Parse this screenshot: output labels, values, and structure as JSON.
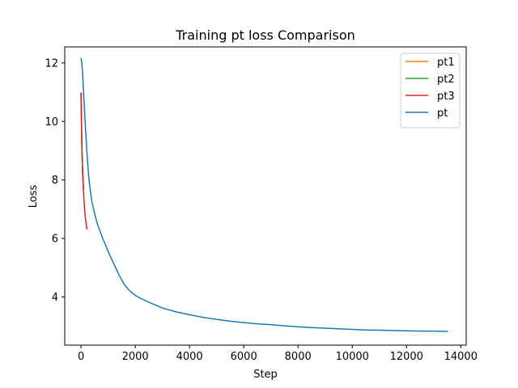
{
  "chart_data": {
    "type": "line",
    "title": "Training pt loss Comparison",
    "xlabel": "Step",
    "ylabel": "Loss",
    "xlim": [
      -600,
      14200
    ],
    "ylim": [
      2.35,
      12.55
    ],
    "xticks": [
      0,
      2000,
      4000,
      6000,
      8000,
      10000,
      12000,
      14000
    ],
    "yticks": [
      4,
      6,
      8,
      10,
      12
    ],
    "grid": false,
    "legend": "top-right",
    "series": [
      {
        "name": "pt1",
        "color": "#ff7f0e",
        "x": [
          0,
          10,
          20,
          30,
          40,
          50,
          60,
          70,
          80,
          90,
          100
        ],
        "y": [
          10.9,
          10.3,
          9.7,
          9.2,
          8.8,
          8.5,
          8.2,
          8.0,
          7.85,
          7.75,
          7.7
        ]
      },
      {
        "name": "pt2",
        "color": "#2ca02c",
        "x": [
          0,
          10,
          20,
          30,
          40,
          50,
          60,
          70,
          80,
          90,
          100
        ],
        "y": [
          10.95,
          10.35,
          9.75,
          9.25,
          8.85,
          8.5,
          8.25,
          8.05,
          7.9,
          7.8,
          7.72
        ]
      },
      {
        "name": "pt3",
        "color": "#d62728",
        "x": [
          0,
          10,
          20,
          30,
          40,
          50,
          60,
          70,
          80,
          100,
          120,
          140,
          160,
          180,
          200,
          220
        ],
        "y": [
          10.97,
          10.4,
          9.8,
          9.3,
          8.9,
          8.55,
          8.3,
          8.05,
          7.8,
          7.45,
          7.15,
          6.9,
          6.7,
          6.55,
          6.42,
          6.32
        ]
      },
      {
        "name": "pt",
        "color": "#1f77b4",
        "x": [
          0,
          30,
          60,
          100,
          150,
          200,
          250,
          300,
          400,
          500,
          600,
          800,
          1000,
          1200,
          1400,
          1600,
          1800,
          2000,
          2200,
          2500,
          3000,
          3500,
          4000,
          4500,
          5000,
          5500,
          6000,
          6500,
          7000,
          7500,
          8000,
          8500,
          9000,
          9500,
          10000,
          10500,
          11000,
          11500,
          12000,
          12500,
          13000,
          13500
        ],
        "y": [
          12.15,
          12.0,
          11.6,
          10.9,
          10.0,
          9.2,
          8.5,
          7.95,
          7.25,
          6.85,
          6.5,
          6.0,
          5.55,
          5.15,
          4.75,
          4.42,
          4.2,
          4.05,
          3.95,
          3.82,
          3.62,
          3.49,
          3.39,
          3.3,
          3.23,
          3.17,
          3.12,
          3.08,
          3.05,
          3.01,
          2.98,
          2.95,
          2.93,
          2.91,
          2.89,
          2.87,
          2.86,
          2.85,
          2.84,
          2.83,
          2.83,
          2.82
        ]
      }
    ]
  }
}
